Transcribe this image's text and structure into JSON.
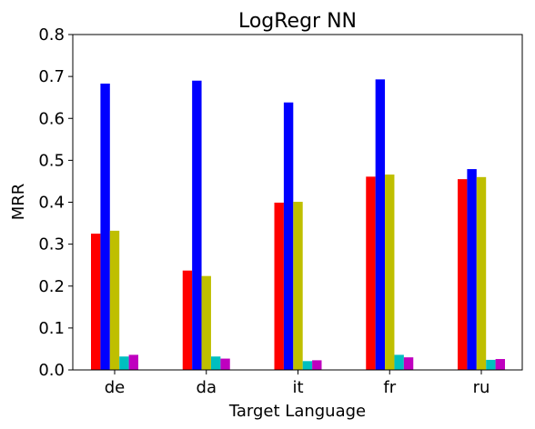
{
  "chart_data": {
    "type": "bar",
    "title": "LogRegr NN",
    "xlabel": "Target Language",
    "ylabel": "MRR",
    "categories": [
      "de",
      "da",
      "it",
      "fr",
      "ru"
    ],
    "ylim": [
      0,
      0.8
    ],
    "yticks": [
      "0.0",
      "0.1",
      "0.2",
      "0.3",
      "0.4",
      "0.5",
      "0.6",
      "0.7",
      "0.8"
    ],
    "grid": false,
    "series": [
      {
        "color": "#ff0000",
        "values": [
          0.325,
          0.237,
          0.399,
          0.461,
          0.455
        ]
      },
      {
        "color": "#0000ff",
        "values": [
          0.683,
          0.69,
          0.638,
          0.693,
          0.479
        ]
      },
      {
        "color": "#bfbf00",
        "values": [
          0.332,
          0.224,
          0.401,
          0.466,
          0.46
        ]
      },
      {
        "color": "#00bfbf",
        "values": [
          0.032,
          0.032,
          0.021,
          0.036,
          0.024
        ]
      },
      {
        "color": "#bf00bf",
        "values": [
          0.036,
          0.027,
          0.023,
          0.03,
          0.026
        ]
      }
    ]
  }
}
